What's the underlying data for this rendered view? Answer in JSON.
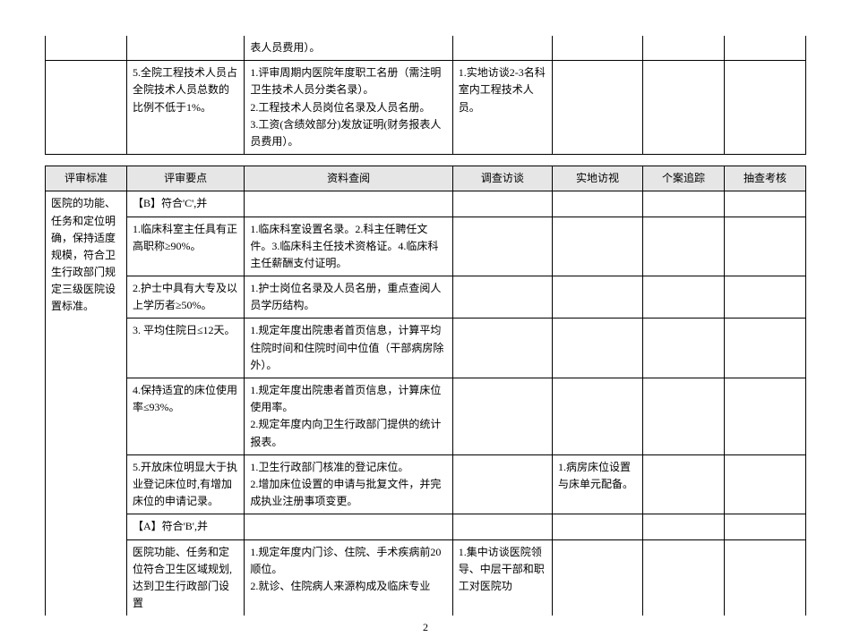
{
  "colors": {
    "bg": "#ffffff",
    "border": "#000000",
    "header_bg": "#e6e6e6",
    "text": "#000000"
  },
  "font": {
    "family": "SimSun",
    "size_pt": 9,
    "line_height": 1.6
  },
  "page_number": "2",
  "table1": {
    "columns": [
      "评审标准",
      "评审要点",
      "资料查阅",
      "调查访谈",
      "实地访视",
      "个案追踪",
      "抽查考核"
    ],
    "rows": [
      {
        "c1": "",
        "c2": "",
        "c3": "表人员费用）。",
        "c4": "",
        "c5": "",
        "c6": "",
        "c7": ""
      },
      {
        "c1": "",
        "c2": "5.全院工程技术人员占全院技术人员总数的比例不低于1%。",
        "c3": "1.评审周期内医院年度职工名册（需注明卫生技术人员分类名录）。\n2.工程技术人员岗位名录及人员名册。\n3.工资(含绩效部分)发放证明(财务报表人员费用）。",
        "c4": "1.实地访谈2-3名科室内工程技术人员。",
        "c5": "",
        "c6": "",
        "c7": ""
      }
    ]
  },
  "table2": {
    "headers": [
      "评审标准",
      "评审要点",
      "资料查阅",
      "调查访谈",
      "实地访视",
      "个案追踪",
      "抽查考核"
    ],
    "standard": "医院的功能、任务和定位明确，保持适度规模，符合卫生行政部门规定三级医院设置标准。",
    "rows": [
      {
        "c2": "【B】符合'C',并",
        "c3": "",
        "c4": "",
        "c5": "",
        "c6": "",
        "c7": ""
      },
      {
        "c2": "1.临床科室主任具有正高职称≥90%。",
        "c3": "1.临床科室设置名录。2.科主任聘任文件。3.临床科主任技术资格证。4.临床科主任薪酬支付证明。",
        "c4": "",
        "c5": "",
        "c6": "",
        "c7": ""
      },
      {
        "c2": "2.护士中具有大专及以上学历者≥50%。",
        "c3": "1.护士岗位名录及人员名册，重点查阅人员学历结构。",
        "c4": "",
        "c5": "",
        "c6": "",
        "c7": ""
      },
      {
        "c2": "3. 平均住院日≤12天。",
        "c3": "1.规定年度出院患者首页信息，计算平均住院时间和住院时间中位值（干部病房除外）。",
        "c4": "",
        "c5": "",
        "c6": "",
        "c7": ""
      },
      {
        "c2": "4.保持适宜的床位使用率≤93%。",
        "c3": "1.规定年度出院患者首页信息，计算床位使用率。\n2.规定年度内向卫生行政部门提供的统计报表。",
        "c4": "",
        "c5": "",
        "c6": "",
        "c7": ""
      },
      {
        "c2": "5.开放床位明显大于执业登记床位时,有增加床位的申请记录。",
        "c3": "1.卫生行政部门核准的登记床位。\n2.增加床位设置的申请与批复文件，并完成执业注册事项变更。",
        "c4": "",
        "c5": "1.病房床位设置与床单元配备。",
        "c6": "",
        "c7": ""
      },
      {
        "c2": "【A】符合'B',并",
        "c3": "",
        "c4": "",
        "c5": "",
        "c6": "",
        "c7": ""
      },
      {
        "c2": "医院功能、任务和定位符合卫生区域规划,达到卫生行政部门设置",
        "c3": "1.规定年度内门诊、住院、手术疾病前20顺位。\n2.就诊、住院病人来源构成及临床专业",
        "c4": "1.集中访谈医院领导、中层干部和职工对医院功",
        "c5": "",
        "c6": "",
        "c7": ""
      }
    ]
  }
}
